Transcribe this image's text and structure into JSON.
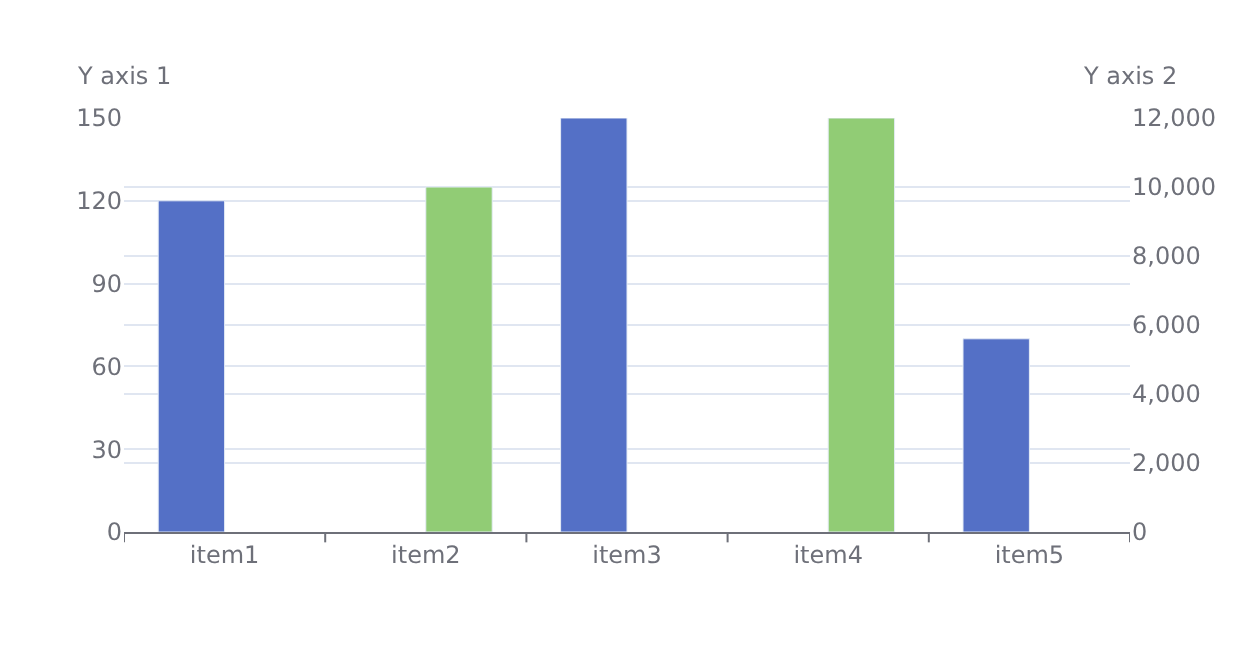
{
  "chart_data": {
    "type": "bar",
    "categories": [
      "item1",
      "item2",
      "item3",
      "item4",
      "item5"
    ],
    "series": [
      {
        "color": "#5470c6",
        "values": [
          120,
          null,
          150,
          null,
          70
        ]
      },
      {
        "color": "#91cc75",
        "values": [
          null,
          10000,
          null,
          12000,
          null
        ],
        "axis": "y2"
      }
    ],
    "ylabel": "Y axis 1",
    "y2label": "Y axis 2",
    "ylim": [
      0,
      150
    ],
    "yticks": [
      0,
      30,
      60,
      90,
      120,
      150
    ],
    "y2lim": [
      0,
      12000
    ],
    "y2ticks": [
      0,
      {
        "value": 2000,
        "label": "2,000"
      },
      {
        "value": 4000,
        "label": "4,000"
      },
      {
        "value": 6000,
        "label": "6,000"
      },
      {
        "value": 8000,
        "label": "8,000"
      },
      {
        "value": 10000,
        "label": "10,000"
      },
      {
        "value": 12000,
        "label": "12,000"
      }
    ],
    "grid": true
  }
}
